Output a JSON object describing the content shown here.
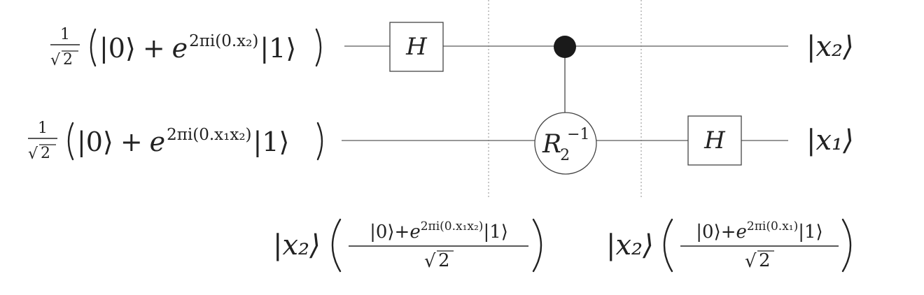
{
  "inputs": {
    "top": {
      "coef_num": "1",
      "coef_den": "2",
      "ket0": "|0⟩",
      "plus": "+",
      "base": "e",
      "exp": "2πi(0.x₂)",
      "ket1": "|1⟩"
    },
    "bottom": {
      "coef_num": "1",
      "coef_den": "2",
      "ket0": "|0⟩",
      "plus": "+",
      "base": "e",
      "exp": "2πi(0.x₁x₂)",
      "ket1": "|1⟩"
    }
  },
  "gates": {
    "h_top": "H",
    "h_bottom": "H",
    "rotation": {
      "base": "R",
      "sub": "2",
      "sup": "−1"
    }
  },
  "outputs": {
    "top": "|x₂⟩",
    "bottom": "|x₁⟩"
  },
  "intermediate_states": [
    {
      "ket": "|x₂⟩",
      "numerator": "|0⟩+e²ᵖⁱ⁽⁰·ˣ¹ˣ²⁾|1⟩",
      "num_ket0": "|0⟩+",
      "num_base": "e",
      "num_exp": "2πi(0.x₁x₂)",
      "num_ket1": "|1⟩",
      "den": "2"
    },
    {
      "ket": "|x₂⟩",
      "numerator": "|0⟩+e²ᵖⁱ⁽⁰·ˣ¹⁾|1⟩",
      "num_ket0": "|0⟩+",
      "num_base": "e",
      "num_exp": "2πi(0.x₁)",
      "num_ket1": "|1⟩",
      "den": "2"
    }
  ]
}
